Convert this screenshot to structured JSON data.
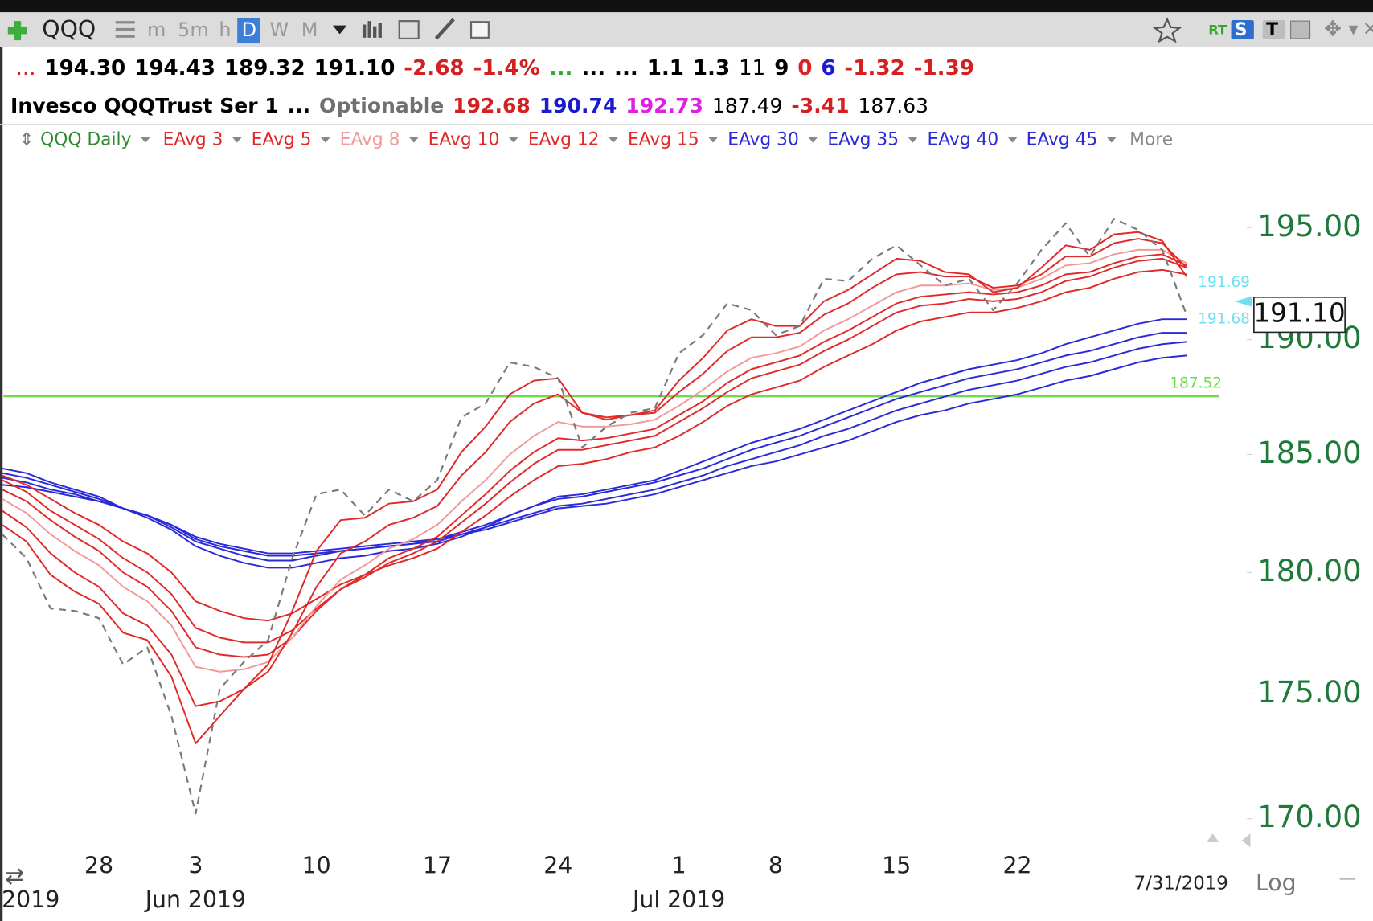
{
  "toolbar": {
    "symbol": "QQQ",
    "intervals": [
      "m",
      "5m",
      "h",
      "D",
      "W",
      "M"
    ],
    "active_interval": "D",
    "badges": [
      "RT",
      "S",
      "T"
    ]
  },
  "quote": {
    "row1": [
      {
        "text": "...",
        "color": "#d42020",
        "weight": "normal"
      },
      {
        "text": "194.30",
        "color": "#000000",
        "weight": "bold"
      },
      {
        "text": "194.43",
        "color": "#000000",
        "weight": "bold"
      },
      {
        "text": "189.32",
        "color": "#000000",
        "weight": "bold"
      },
      {
        "text": "191.10",
        "color": "#000000",
        "weight": "bold"
      },
      {
        "text": "-2.68",
        "color": "#d42020",
        "weight": "bold"
      },
      {
        "text": "-1.4%",
        "color": "#d42020",
        "weight": "bold"
      },
      {
        "text": "...",
        "color": "#2fa82f",
        "weight": "bold"
      },
      {
        "text": "...",
        "color": "#000000",
        "weight": "bold"
      },
      {
        "text": "...",
        "color": "#000000",
        "weight": "bold"
      },
      {
        "text": "1.1",
        "color": "#000000",
        "weight": "bold"
      },
      {
        "text": "1.3",
        "color": "#000000",
        "weight": "bold"
      },
      {
        "text": "11",
        "color": "#000000",
        "weight": "normal"
      },
      {
        "text": "9",
        "color": "#000000",
        "weight": "bold"
      },
      {
        "text": "0",
        "color": "#e02020",
        "weight": "bold"
      },
      {
        "text": "6",
        "color": "#1a1ad0",
        "weight": "bold"
      },
      {
        "text": "-1.32",
        "color": "#d42020",
        "weight": "bold"
      },
      {
        "text": "-1.39",
        "color": "#d42020",
        "weight": "bold"
      }
    ],
    "row2": [
      {
        "text": "Invesco QQQTrust Ser 1",
        "color": "#000000",
        "weight": "bold"
      },
      {
        "text": "...",
        "color": "#000000",
        "weight": "bold"
      },
      {
        "text": "Optionable",
        "color": "#707070",
        "weight": "bold"
      },
      {
        "text": "192.68",
        "color": "#d42020",
        "weight": "bold"
      },
      {
        "text": "190.74",
        "color": "#1a1ad0",
        "weight": "bold"
      },
      {
        "text": "192.73",
        "color": "#e020e0",
        "weight": "bold"
      },
      {
        "text": "187.49",
        "color": "#000000",
        "weight": "normal"
      },
      {
        "text": "-3.41",
        "color": "#d42020",
        "weight": "bold"
      },
      {
        "text": "187.63",
        "color": "#000000",
        "weight": "normal"
      }
    ]
  },
  "legend": {
    "more": "More"
  },
  "chart_data": {
    "type": "line",
    "log_scale": true,
    "categories": [
      null,
      null,
      null,
      null,
      "28",
      null,
      null,
      null,
      "3",
      null,
      null,
      null,
      null,
      "10",
      null,
      null,
      null,
      null,
      "17",
      null,
      null,
      null,
      null,
      "24",
      null,
      null,
      null,
      null,
      "1",
      null,
      null,
      null,
      "8",
      null,
      null,
      null,
      null,
      "15",
      null,
      null,
      null,
      null,
      "22",
      null,
      null,
      null,
      null,
      null,
      null,
      null
    ],
    "month_labels": [
      "2019",
      null,
      null,
      null,
      null,
      null,
      null,
      null,
      "Jun 2019",
      null,
      null,
      null,
      null,
      null,
      null,
      null,
      null,
      null,
      null,
      null,
      null,
      null,
      null,
      null,
      null,
      null,
      null,
      null,
      "Jul 2019",
      null,
      null,
      null,
      null,
      null,
      null,
      null,
      null,
      null,
      null,
      null,
      null,
      null,
      null,
      null,
      null,
      null,
      null,
      null,
      null,
      null
    ],
    "last_date": "7/31/2019",
    "scale_label": "Log",
    "ylim": [
      168.8,
      198.2
    ],
    "yticks": [
      {
        "value": 170,
        "label": "170.00"
      },
      {
        "value": 175,
        "label": "175.00"
      },
      {
        "value": 180,
        "label": "180.00"
      },
      {
        "value": 185,
        "label": "185.00"
      },
      {
        "value": 190,
        "label": "190.00"
      },
      {
        "value": 195,
        "label": "195.00"
      }
    ],
    "series": [
      {
        "name": "QQQ Daily",
        "color": "#7a7a7a",
        "label_color": "#2e8b2e",
        "dashed": true,
        "values": [
          181.6,
          180.6,
          178.5,
          178.4,
          178.1,
          176.2,
          176.9,
          174.1,
          170.2,
          175.2,
          176.3,
          177.2,
          180.6,
          183.3,
          183.5,
          182.4,
          183.5,
          183.0,
          183.9,
          186.6,
          187.2,
          189.0,
          188.8,
          188.3,
          185.3,
          186.2,
          186.8,
          187.0,
          189.4,
          190.2,
          191.6,
          191.3,
          190.2,
          190.6,
          192.7,
          192.6,
          193.6,
          194.2,
          193.3,
          192.4,
          192.7,
          191.3,
          192.5,
          194.0,
          195.2,
          193.7,
          195.4,
          194.9,
          194.0,
          191.1
        ]
      },
      {
        "name": "EAvg 3",
        "color": "#e02a2a",
        "values": [
          182.0,
          181.3,
          179.9,
          179.2,
          178.7,
          177.5,
          177.2,
          175.7,
          173.0,
          174.1,
          175.2,
          176.2,
          178.4,
          180.9,
          182.2,
          182.3,
          182.9,
          183.0,
          183.5,
          185.1,
          186.2,
          187.6,
          188.2,
          188.3,
          186.8,
          186.5,
          186.7,
          186.9,
          188.2,
          189.2,
          190.4,
          190.9,
          190.6,
          190.6,
          191.7,
          192.2,
          192.9,
          193.6,
          193.5,
          193.0,
          192.9,
          192.1,
          192.3,
          193.2,
          194.2,
          194.0,
          194.7,
          194.8,
          194.4,
          192.8
        ]
      },
      {
        "name": "EAvg 5",
        "color": "#e02a2a",
        "values": [
          182.6,
          181.9,
          180.8,
          180.0,
          179.4,
          178.3,
          177.8,
          176.6,
          174.5,
          174.7,
          175.2,
          175.9,
          177.5,
          179.4,
          180.8,
          181.3,
          182.0,
          182.3,
          182.8,
          184.1,
          185.1,
          186.4,
          187.2,
          187.6,
          186.8,
          186.6,
          186.7,
          186.8,
          187.7,
          188.5,
          189.5,
          190.1,
          190.1,
          190.3,
          191.1,
          191.6,
          192.3,
          192.9,
          193.0,
          192.8,
          192.8,
          192.3,
          192.4,
          192.9,
          193.7,
          193.7,
          194.3,
          194.5,
          194.3,
          193.2
        ]
      },
      {
        "name": "EAvg 8",
        "color": "#f09a9a",
        "values": [
          183.1,
          182.5,
          181.6,
          180.9,
          180.3,
          179.4,
          178.8,
          177.8,
          176.1,
          175.9,
          176.0,
          176.3,
          177.3,
          178.6,
          179.7,
          180.3,
          181.0,
          181.4,
          182.0,
          183.0,
          183.9,
          185.0,
          185.8,
          186.4,
          186.2,
          186.2,
          186.3,
          186.5,
          187.1,
          187.8,
          188.6,
          189.2,
          189.4,
          189.7,
          190.4,
          190.9,
          191.5,
          192.1,
          192.4,
          192.4,
          192.5,
          192.2,
          192.3,
          192.7,
          193.3,
          193.4,
          193.8,
          194.0,
          194.0,
          193.4
        ]
      },
      {
        "name": "EAvg 10",
        "color": "#e02a2a",
        "values": [
          183.5,
          183.0,
          182.2,
          181.5,
          180.9,
          180.0,
          179.4,
          178.4,
          176.9,
          176.6,
          176.5,
          176.6,
          177.3,
          178.4,
          179.3,
          179.9,
          180.6,
          181.0,
          181.5,
          182.4,
          183.3,
          184.3,
          185.1,
          185.7,
          185.6,
          185.7,
          185.9,
          186.1,
          186.7,
          187.3,
          188.1,
          188.7,
          189.0,
          189.3,
          189.9,
          190.4,
          191.0,
          191.6,
          191.9,
          192.0,
          192.1,
          192.0,
          192.1,
          192.4,
          192.9,
          193.0,
          193.4,
          193.7,
          193.8,
          193.3
        ]
      },
      {
        "name": "EAvg 12",
        "color": "#e02a2a",
        "values": [
          183.9,
          183.4,
          182.6,
          182.0,
          181.4,
          180.6,
          180.0,
          179.1,
          177.7,
          177.3,
          177.1,
          177.1,
          177.6,
          178.5,
          179.3,
          179.8,
          180.4,
          180.8,
          181.3,
          182.1,
          182.9,
          183.8,
          184.6,
          185.2,
          185.2,
          185.4,
          185.6,
          185.8,
          186.4,
          187.0,
          187.7,
          188.3,
          188.6,
          188.9,
          189.5,
          190.0,
          190.6,
          191.2,
          191.5,
          191.6,
          191.8,
          191.7,
          191.8,
          192.1,
          192.6,
          192.8,
          193.2,
          193.5,
          193.6,
          193.2
        ]
      },
      {
        "name": "EAvg 15",
        "color": "#e02a2a",
        "values": [
          184.1,
          183.7,
          183.1,
          182.5,
          182.0,
          181.3,
          180.8,
          180.0,
          178.8,
          178.4,
          178.1,
          178.0,
          178.3,
          178.9,
          179.5,
          179.9,
          180.3,
          180.6,
          181.0,
          181.7,
          182.4,
          183.2,
          183.9,
          184.5,
          184.6,
          184.8,
          185.1,
          185.3,
          185.8,
          186.4,
          187.1,
          187.6,
          187.9,
          188.2,
          188.8,
          189.3,
          189.8,
          190.4,
          190.8,
          191.0,
          191.2,
          191.2,
          191.4,
          191.7,
          192.1,
          192.3,
          192.7,
          193.0,
          193.1,
          192.9
        ]
      },
      {
        "name": "EAvg 30",
        "color": "#2a2ad8",
        "values": [
          184.4,
          184.2,
          183.8,
          183.5,
          183.2,
          182.7,
          182.3,
          181.8,
          181.1,
          180.7,
          180.4,
          180.2,
          180.2,
          180.4,
          180.6,
          180.7,
          180.9,
          181.0,
          181.2,
          181.5,
          181.9,
          182.4,
          182.8,
          183.2,
          183.3,
          183.5,
          183.7,
          183.9,
          184.3,
          184.7,
          185.1,
          185.5,
          185.8,
          186.1,
          186.5,
          186.9,
          187.3,
          187.7,
          188.1,
          188.4,
          188.7,
          188.9,
          189.1,
          189.4,
          189.8,
          190.1,
          190.4,
          190.7,
          190.9,
          190.9
        ]
      },
      {
        "name": "EAvg 35",
        "color": "#2a2ad8",
        "values": [
          184.2,
          184.0,
          183.7,
          183.4,
          183.1,
          182.7,
          182.4,
          181.9,
          181.3,
          181.0,
          180.7,
          180.5,
          180.5,
          180.7,
          180.9,
          181.0,
          181.1,
          181.2,
          181.4,
          181.7,
          182.0,
          182.4,
          182.8,
          183.1,
          183.2,
          183.4,
          183.6,
          183.8,
          184.1,
          184.4,
          184.8,
          185.2,
          185.5,
          185.8,
          186.2,
          186.6,
          187.0,
          187.4,
          187.7,
          188.0,
          188.3,
          188.5,
          188.7,
          189.0,
          189.3,
          189.5,
          189.8,
          190.1,
          190.3,
          190.3
        ]
      },
      {
        "name": "EAvg 40",
        "color": "#2a2ad8",
        "values": [
          184.0,
          183.8,
          183.5,
          183.3,
          183.0,
          182.7,
          182.4,
          182.0,
          181.4,
          181.1,
          180.9,
          180.7,
          180.7,
          180.8,
          180.9,
          181.0,
          181.1,
          181.2,
          181.3,
          181.6,
          181.9,
          182.2,
          182.5,
          182.8,
          182.9,
          183.1,
          183.3,
          183.5,
          183.8,
          184.1,
          184.5,
          184.8,
          185.1,
          185.4,
          185.8,
          186.1,
          186.5,
          186.9,
          187.2,
          187.5,
          187.8,
          188.0,
          188.2,
          188.5,
          188.8,
          189.0,
          189.3,
          189.6,
          189.8,
          189.9
        ]
      },
      {
        "name": "EAvg 45",
        "color": "#2a2ad8",
        "values": [
          183.7,
          183.6,
          183.4,
          183.2,
          183.0,
          182.7,
          182.4,
          182.0,
          181.5,
          181.2,
          181.0,
          180.8,
          180.8,
          180.9,
          181.0,
          181.1,
          181.2,
          181.3,
          181.4,
          181.6,
          181.8,
          182.1,
          182.4,
          182.7,
          182.8,
          182.9,
          183.1,
          183.3,
          183.6,
          183.9,
          184.2,
          184.5,
          184.7,
          185.0,
          185.3,
          185.6,
          186.0,
          186.4,
          186.7,
          186.9,
          187.2,
          187.4,
          187.6,
          187.9,
          188.2,
          188.4,
          188.7,
          189.0,
          189.2,
          189.3
        ]
      }
    ],
    "hline": {
      "value": 187.52,
      "label": "187.52",
      "color": "#6fdc4a"
    },
    "price_tags": [
      {
        "value": 191.69,
        "label": "191.69",
        "color": "#6fe0f0"
      },
      {
        "value": 191.68,
        "label": "191.68",
        "color": "#6fe0f0"
      }
    ],
    "last_price": {
      "value": 191.1,
      "label": "191.10"
    }
  }
}
